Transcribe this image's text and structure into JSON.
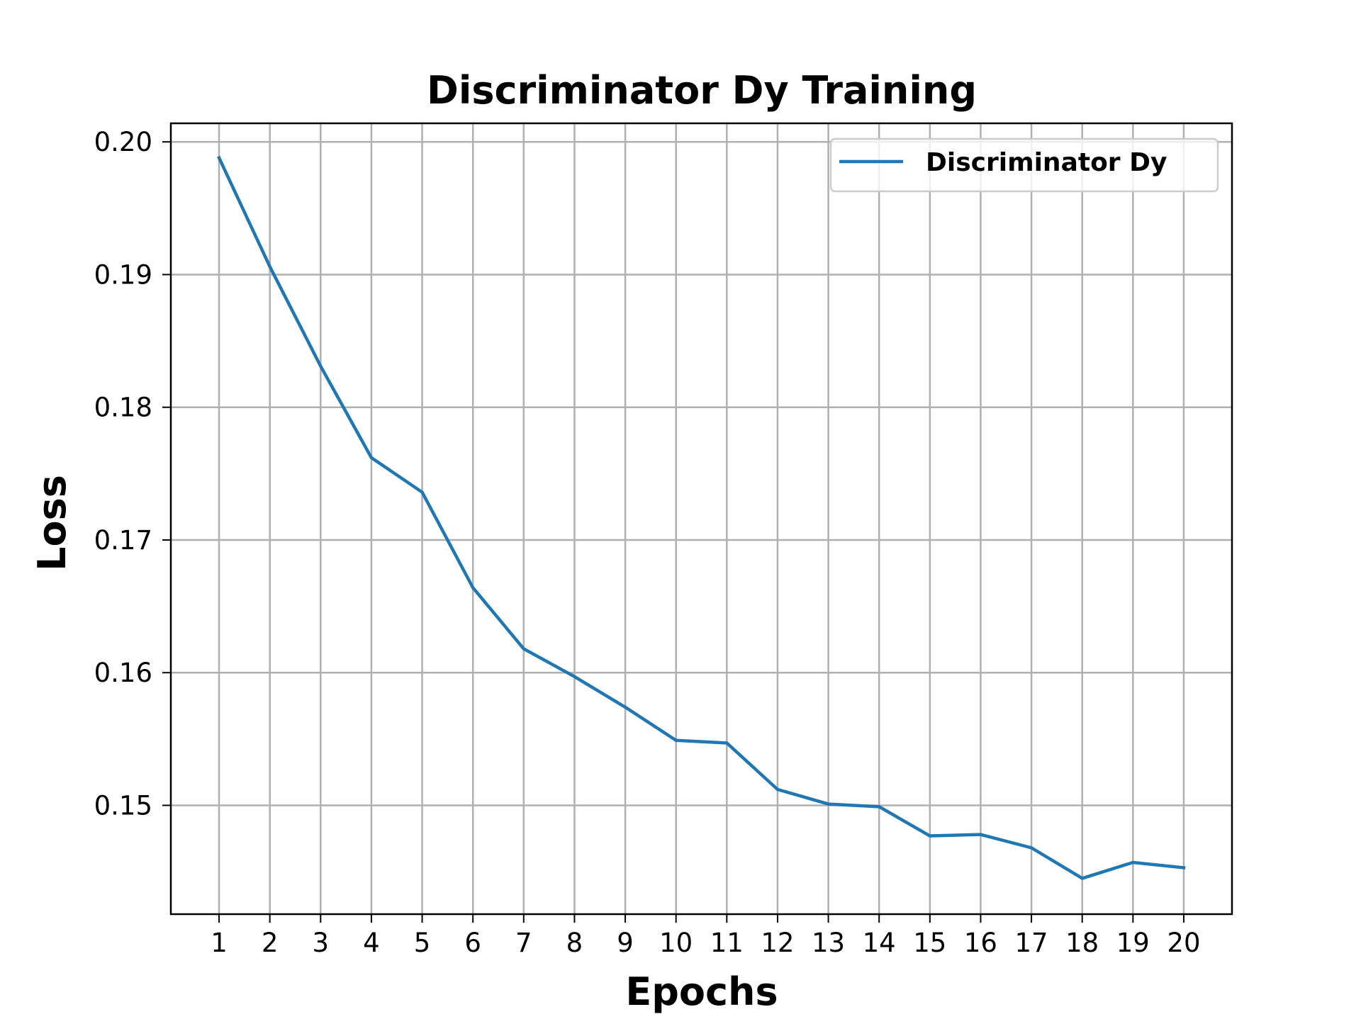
{
  "chart_data": {
    "type": "line",
    "title": "Discriminator Dy Training",
    "xlabel": "Epochs",
    "ylabel": "Loss",
    "x": [
      1,
      2,
      3,
      4,
      5,
      6,
      7,
      8,
      9,
      10,
      11,
      12,
      13,
      14,
      15,
      16,
      17,
      18,
      19,
      20
    ],
    "x_tick_labels": [
      "1",
      "2",
      "3",
      "4",
      "5",
      "6",
      "7",
      "8",
      "9",
      "10",
      "11",
      "12",
      "13",
      "14",
      "15",
      "16",
      "17",
      "18",
      "19",
      "20"
    ],
    "xlim": [
      0.05,
      20.95
    ],
    "ylim": [
      0.1418,
      0.2014
    ],
    "y_ticks": [
      0.15,
      0.16,
      0.17,
      0.18,
      0.19,
      0.2
    ],
    "y_tick_labels": [
      "0.15",
      "0.16",
      "0.17",
      "0.18",
      "0.19",
      "0.20"
    ],
    "grid": true,
    "legend_position": "top-right",
    "series": [
      {
        "name": "Discriminator Dy",
        "color": "#1f77b4",
        "values": [
          0.1988,
          0.1906,
          0.1831,
          0.1762,
          0.1736,
          0.1664,
          0.1618,
          0.1597,
          0.1574,
          0.1549,
          0.1547,
          0.1512,
          0.1501,
          0.1499,
          0.1477,
          0.1478,
          0.1468,
          0.1445,
          0.1457,
          0.1453
        ]
      }
    ]
  }
}
